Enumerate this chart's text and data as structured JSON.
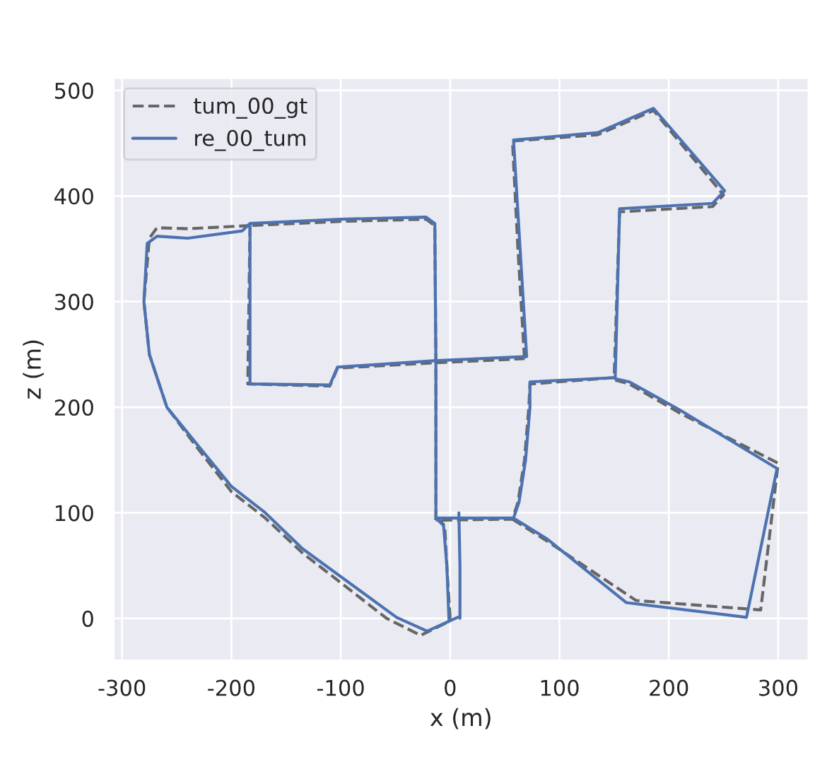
{
  "chart_data": {
    "type": "line",
    "xlabel": "x (m)",
    "ylabel": "z (m)",
    "xlim": [
      -308,
      328
    ],
    "ylim": [
      -40,
      512
    ],
    "xticks": [
      -300,
      -200,
      -100,
      0,
      100,
      200,
      300
    ],
    "yticks": [
      0,
      100,
      200,
      300,
      400,
      500
    ],
    "grid": true,
    "legend": "top left",
    "marker": "none",
    "series": [
      {
        "name": "tum_00_gt",
        "color": "#666666",
        "line_style": "dashed",
        "x": [
          0,
          -3,
          -5,
          -10,
          null,
          -13,
          -13,
          -14,
          -22,
          -100,
          -183,
          null,
          -183,
          -185,
          -110,
          -103,
          -15,
          68,
          null,
          68,
          62,
          57,
          135,
          186,
          250,
          240,
          155,
          150,
          73,
          72,
          68,
          62,
          57,
          -13,
          null,
          57,
          89,
          170,
          284,
          300,
          209,
          164,
          150,
          null,
          -183,
          -240,
          -268,
          -275,
          -280,
          -275,
          -259,
          -230,
          -200,
          -169,
          -135,
          -58,
          -27,
          -1,
          0
        ],
        "values": [
          0,
          50,
          88,
          93,
          null,
          93,
          242,
          372,
          378,
          376,
          372,
          null,
          372,
          222,
          220,
          237,
          242,
          246,
          null,
          246,
          350,
          452,
          458,
          481,
          401,
          390,
          385,
          228,
          222,
          200,
          150,
          110,
          94,
          93,
          null,
          94,
          73,
          17,
          8,
          147,
          195,
          222,
          226,
          null,
          372,
          369,
          370,
          360,
          300,
          250,
          200,
          160,
          120,
          95,
          62,
          0,
          -16,
          -3,
          0
        ]
      },
      {
        "name": "re_00_tum",
        "color": "#4c72b0",
        "line_style": "solid",
        "x": [
          9,
          9,
          8,
          null,
          -1,
          -3,
          -6,
          -13,
          null,
          -13,
          -13,
          -14,
          -22,
          -100,
          -183,
          null,
          -183,
          -183,
          -110,
          -103,
          -15,
          70,
          null,
          70,
          64,
          58,
          135,
          186,
          251,
          240,
          155,
          151,
          73,
          73,
          69,
          63,
          58,
          -13,
          null,
          58,
          89,
          161,
          271,
          299,
          209,
          164,
          151,
          null,
          -183,
          -190,
          -240,
          -268,
          -277,
          -280,
          -275,
          -259,
          -230,
          -200,
          -169,
          -135,
          -49,
          -21,
          9
        ],
        "values": [
          0,
          50,
          100,
          null,
          -3,
          50,
          88,
          95,
          null,
          95,
          242,
          374,
          380,
          378,
          374,
          null,
          374,
          222,
          221,
          238,
          244,
          248,
          null,
          248,
          350,
          453,
          460,
          483,
          405,
          393,
          388,
          228,
          224,
          200,
          150,
          110,
          95,
          95,
          null,
          95,
          75,
          15,
          1,
          142,
          198,
          224,
          227,
          null,
          374,
          367,
          360,
          362,
          355,
          300,
          250,
          200,
          163,
          125,
          100,
          66,
          1,
          -12,
          2
        ]
      }
    ]
  }
}
